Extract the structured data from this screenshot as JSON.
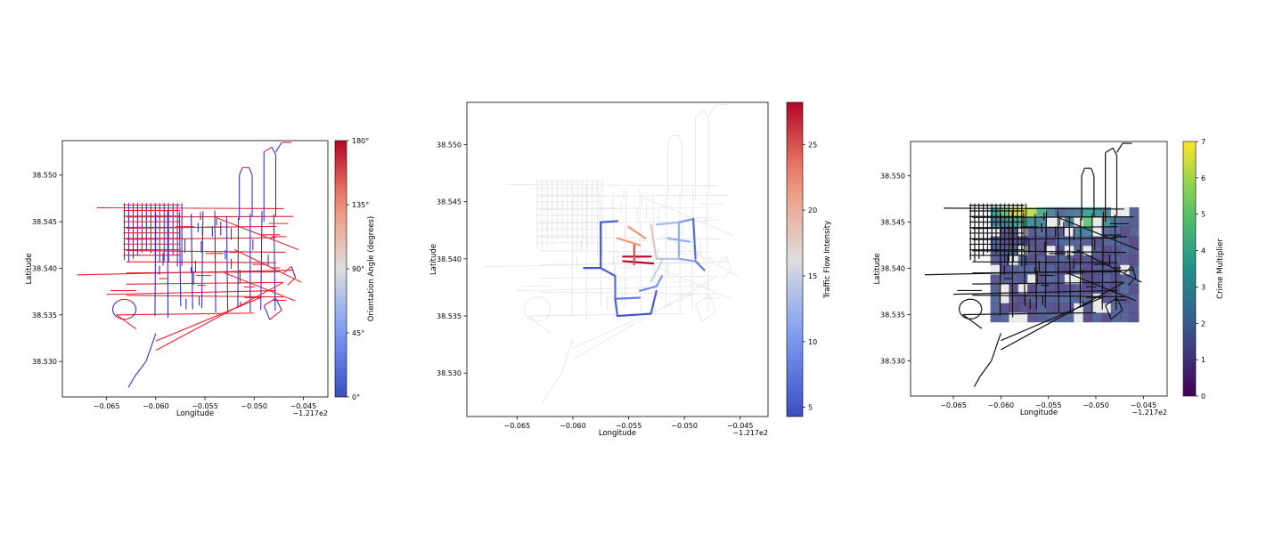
{
  "chart_data": [
    {
      "type": "line",
      "title": "",
      "xlabel": "Longitude",
      "ylabel": "Latitude",
      "x_offset_label": "−1.217e2",
      "xlim": [
        -0.0695,
        -0.0425
      ],
      "ylim": [
        38.5262,
        38.5537
      ],
      "xticks": [
        "−0.065",
        "−0.060",
        "−0.055",
        "−0.050",
        "−0.045"
      ],
      "yticks": [
        "38.530",
        "38.535",
        "38.540",
        "38.545",
        "38.550"
      ],
      "colorbar": {
        "label": "Orientation Angle (degrees)",
        "colormap": "coolwarm",
        "range": [
          0,
          180
        ],
        "ticks": [
          "0°",
          "45°",
          "90°",
          "135°",
          "180°"
        ]
      },
      "color_by": "orientation",
      "colors": {
        "low": "#3b4cc0",
        "mid": "#dddddd",
        "high": "#b40426"
      }
    },
    {
      "type": "line",
      "title": "",
      "xlabel": "Longitude",
      "ylabel": "Latitude",
      "x_offset_label": "−1.217e2",
      "xlim": [
        -0.0695,
        -0.0425
      ],
      "ylim": [
        38.5262,
        38.5537
      ],
      "xticks": [
        "−0.065",
        "−0.060",
        "−0.055",
        "−0.050",
        "−0.045"
      ],
      "yticks": [
        "38.530",
        "38.535",
        "38.540",
        "38.545",
        "38.550"
      ],
      "colorbar": {
        "label": "Traffic Flow Intensity",
        "colormap": "coolwarm",
        "range": [
          4.3,
          28.2
        ],
        "ticks": [
          "5",
          "10",
          "15",
          "20",
          "25"
        ]
      },
      "color_by": "traffic",
      "colors": {
        "background_roads": "#e6e6e6",
        "low": "#3b4cc0",
        "mid": "#dddddd",
        "high": "#b40426"
      }
    },
    {
      "type": "heatmap",
      "title": "",
      "xlabel": "Longitude",
      "ylabel": "Latitude",
      "x_offset_label": "−1.217e2",
      "xlim": [
        -0.0695,
        -0.0425
      ],
      "ylim": [
        38.5262,
        38.5537
      ],
      "xticks": [
        "−0.065",
        "−0.060",
        "−0.055",
        "−0.050",
        "−0.045"
      ],
      "yticks": [
        "38.530",
        "38.535",
        "38.540",
        "38.545",
        "38.550"
      ],
      "colorbar": {
        "label": "Crime Multiplier",
        "colormap": "viridis",
        "range": [
          0,
          7
        ],
        "ticks": [
          "0",
          "1",
          "2",
          "3",
          "4",
          "5",
          "6",
          "7"
        ]
      },
      "heatmap_extent": {
        "x": [
          -0.0611,
          -0.0455
        ],
        "y": [
          38.5342,
          38.5466
        ]
      },
      "colors": {
        "roads": "#111111"
      }
    }
  ]
}
